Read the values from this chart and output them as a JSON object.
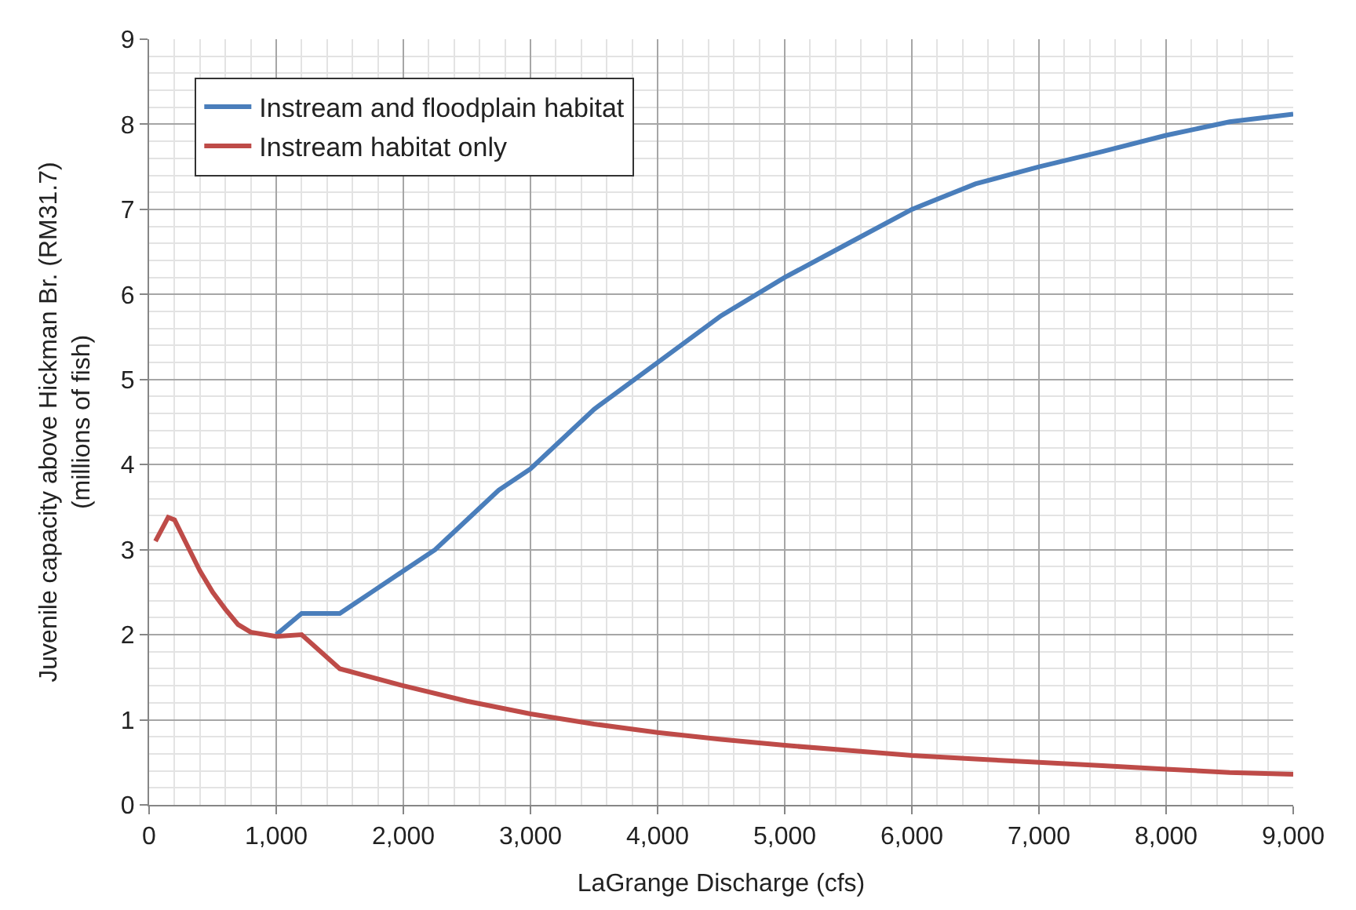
{
  "chart_data": {
    "type": "line",
    "xlabel": "LaGrange Discharge (cfs)",
    "ylabel": "Juvenile capacity above Hickman Br. (RM31.7)\n(millions of fish)",
    "xlim": [
      0,
      9000
    ],
    "xticks": [
      0,
      {
        "value": 1000,
        "label": "1,000"
      },
      {
        "value": 2000,
        "label": "2,000"
      },
      {
        "value": 3000,
        "label": "3,000"
      },
      {
        "value": 4000,
        "label": "4,000"
      },
      {
        "value": 5000,
        "label": "5,000"
      },
      {
        "value": 6000,
        "label": "6,000"
      },
      {
        "value": 7000,
        "label": "7,000"
      },
      {
        "value": 8000,
        "label": "8,000"
      },
      {
        "value": 9000,
        "label": "9,000"
      }
    ],
    "ylim": [
      0,
      9
    ],
    "yticks": [
      0,
      1,
      2,
      3,
      4,
      5,
      6,
      7,
      8,
      9
    ],
    "grid": true,
    "legend": "top left",
    "marker": "none",
    "line_style": "solid",
    "series": [
      {
        "name": "Instream and floodplain habitat",
        "color": "#4a7ebb",
        "x": [
          1000,
          1200,
          1500,
          1750,
          2000,
          2250,
          2500,
          2750,
          3000,
          3500,
          4000,
          4500,
          5000,
          5500,
          6000,
          6500,
          7000,
          7500,
          8000,
          8500,
          9000
        ],
        "values": [
          2.0,
          2.25,
          2.25,
          2.5,
          2.75,
          3.0,
          3.35,
          3.7,
          3.95,
          4.65,
          5.2,
          5.75,
          6.2,
          6.6,
          7.0,
          7.3,
          7.5,
          7.68,
          7.87,
          8.03,
          8.12
        ]
      },
      {
        "name": "Instream habitat only",
        "color": "#be4b48",
        "x": [
          50,
          150,
          200,
          300,
          400,
          500,
          600,
          700,
          800,
          1000,
          1200,
          1500,
          2000,
          2500,
          3000,
          3500,
          4000,
          4500,
          5000,
          5500,
          6000,
          6500,
          7000,
          7500,
          8000,
          8500,
          9000
        ],
        "values": [
          3.1,
          3.38,
          3.35,
          3.05,
          2.75,
          2.5,
          2.3,
          2.12,
          2.03,
          1.98,
          2.0,
          1.6,
          1.4,
          1.22,
          1.07,
          0.95,
          0.85,
          0.77,
          0.7,
          0.64,
          0.58,
          0.54,
          0.5,
          0.46,
          0.42,
          0.38,
          0.36
        ]
      }
    ]
  }
}
